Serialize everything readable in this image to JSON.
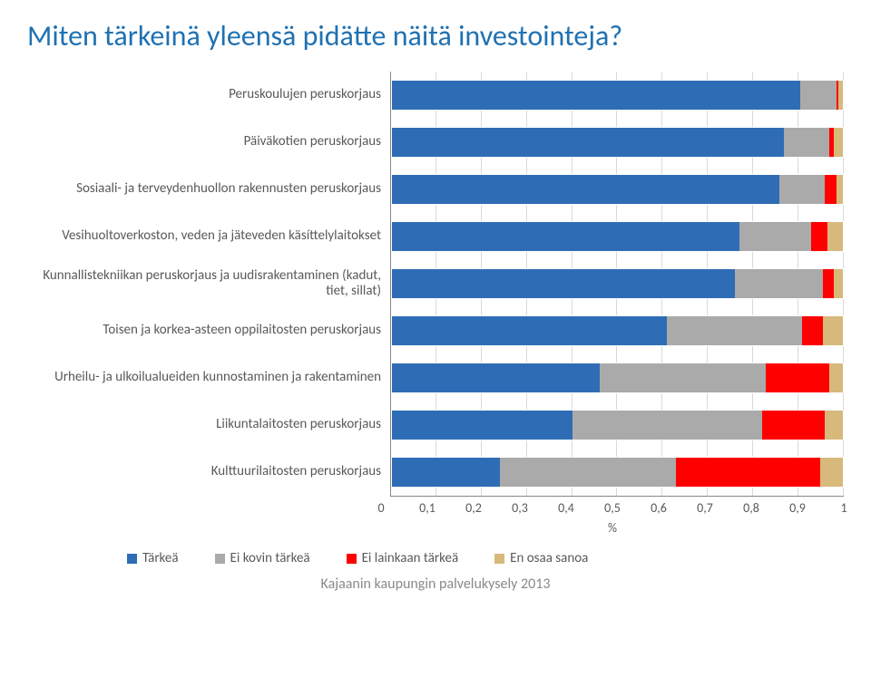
{
  "title": "Miten tärkeinä yleensä pidätte näitä investointeja?",
  "title_color": "#1f71b2",
  "title_fontsize": 32,
  "footer": "Kajaanin kaupungin palvelukysely 2013",
  "footer_color": "#898989",
  "axis_label": "%",
  "x_ticks": [
    "0",
    "0,1",
    "0,2",
    "0,3",
    "0,4",
    "0,5",
    "0,6",
    "0,7",
    "0,8",
    "0,9",
    "1"
  ],
  "grid_color": "#d9d9d9",
  "text_color": "#595959",
  "series": [
    {
      "name": "Tärkeä",
      "color": "#2e6db5"
    },
    {
      "name": "Ei kovin tärkeä",
      "color": "#aaaaaa"
    },
    {
      "name": "Ei lainkaan tärkeä",
      "color": "#ff0000"
    },
    {
      "name": "En osaa sanoa",
      "color": "#d7b97b"
    }
  ],
  "categories": [
    {
      "label": "Peruskoulujen peruskorjaus",
      "values": [
        0.905,
        0.08,
        0.005,
        0.01
      ]
    },
    {
      "label": "Päiväkotien peruskorjaus",
      "values": [
        0.87,
        0.1,
        0.01,
        0.02
      ]
    },
    {
      "label": "Sosiaali- ja terveydenhuollon rakennusten peruskorjaus",
      "values": [
        0.86,
        0.1,
        0.025,
        0.015
      ]
    },
    {
      "label": "Vesihuoltoverkoston, veden ja jäteveden käsíttelylaitokset",
      "values": [
        0.77,
        0.16,
        0.035,
        0.035
      ]
    },
    {
      "label": "Kunnallistekniikan peruskorjaus ja uudisrakentaminen (kadut, tiet, sillat)",
      "values": [
        0.76,
        0.195,
        0.025,
        0.02
      ]
    },
    {
      "label": "Toisen ja korkea-asteen oppilaitosten peruskorjaus",
      "values": [
        0.61,
        0.3,
        0.045,
        0.045
      ]
    },
    {
      "label": "Urheilu- ja ulkoilualueiden kunnostaminen ja rakentaminen",
      "values": [
        0.46,
        0.37,
        0.14,
        0.03
      ]
    },
    {
      "label": "Liikuntalaitosten peruskorjaus",
      "values": [
        0.4,
        0.42,
        0.14,
        0.04
      ]
    },
    {
      "label": "Kulttuurilaitosten peruskorjaus",
      "values": [
        0.24,
        0.39,
        0.32,
        0.05
      ]
    }
  ]
}
